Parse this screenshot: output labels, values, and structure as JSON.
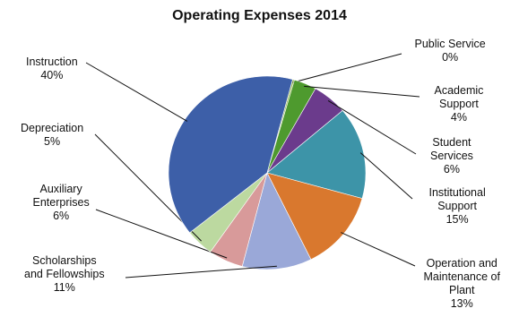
{
  "chart_data": {
    "type": "pie",
    "title": "Operating Expenses 2014",
    "categories": [
      "Public Service",
      "Academic Support",
      "Student Services",
      "Institutional Support",
      "Operation and Maintenance of Plant",
      "Scholarships and Fellowships",
      "Auxiliary Enterprises",
      "Depreciation",
      "Instruction"
    ],
    "slices": [
      {
        "name_lines": [
          "Public Service"
        ],
        "pct_label": "0%",
        "value": 0.3,
        "color": "#9bbb59"
      },
      {
        "name_lines": [
          "Academic",
          "Support"
        ],
        "pct_label": "4%",
        "value": 3.7,
        "color": "#4e9a2e"
      },
      {
        "name_lines": [
          "Student",
          "Services"
        ],
        "pct_label": "6%",
        "value": 5.7,
        "color": "#6b3b8c"
      },
      {
        "name_lines": [
          "Institutional",
          "Support"
        ],
        "pct_label": "15%",
        "value": 15.4,
        "color": "#3d94a8"
      },
      {
        "name_lines": [
          "Operation and",
          "Maintenance of",
          "Plant"
        ],
        "pct_label": "13%",
        "value": 13.4,
        "color": "#d9782e"
      },
      {
        "name_lines": [
          "Scholarships",
          "and Fellowships"
        ],
        "pct_label": "11%",
        "value": 11.4,
        "color": "#9aa8d8"
      },
      {
        "name_lines": [
          "Auxiliary",
          "Enterprises"
        ],
        "pct_label": "6%",
        "value": 5.7,
        "color": "#d89a9a"
      },
      {
        "name_lines": [
          "Depreciation"
        ],
        "pct_label": "5%",
        "value": 4.6,
        "color": "#bcd9a0"
      },
      {
        "name_lines": [
          "Instruction"
        ],
        "pct_label": "40%",
        "value": 39.8,
        "color": "#3d5fa8"
      }
    ],
    "legend": "callout-labels"
  }
}
